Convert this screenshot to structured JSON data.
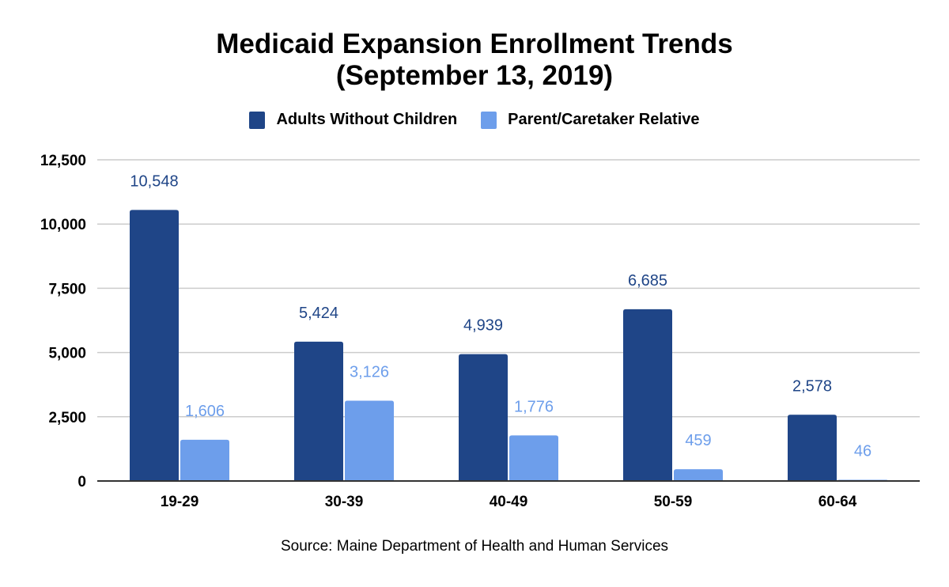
{
  "chart_data": {
    "type": "bar",
    "title": [
      "Medicaid Expansion Enrollment Trends",
      "(September 13, 2019)"
    ],
    "xlabel": "",
    "ylabel": "",
    "categories": [
      "19-29",
      "30-39",
      "40-49",
      "50-59",
      "60-64"
    ],
    "series": [
      {
        "name": "Adults Without Children",
        "color": "#1f4587",
        "values": [
          10548,
          5424,
          4939,
          6685,
          2578
        ],
        "labels": [
          "10,548",
          "5,424",
          "4,939",
          "6,685",
          "2,578"
        ]
      },
      {
        "name": "Parent/Caretaker Relative",
        "color": "#6d9eeb",
        "values": [
          1606,
          3126,
          1776,
          459,
          46
        ],
        "labels": [
          "1,606",
          "3,126",
          "1,776",
          "459",
          "46"
        ]
      }
    ],
    "ylim": [
      0,
      12500
    ],
    "yticks": [
      0,
      2500,
      5000,
      7500,
      10000,
      12500
    ],
    "ytick_labels": [
      "0",
      "2,500",
      "5,000",
      "7,500",
      "10,000",
      "12,500"
    ],
    "grid": true,
    "legend_position": "top-center",
    "source": "Source: Maine Department of Health and Human Services"
  }
}
